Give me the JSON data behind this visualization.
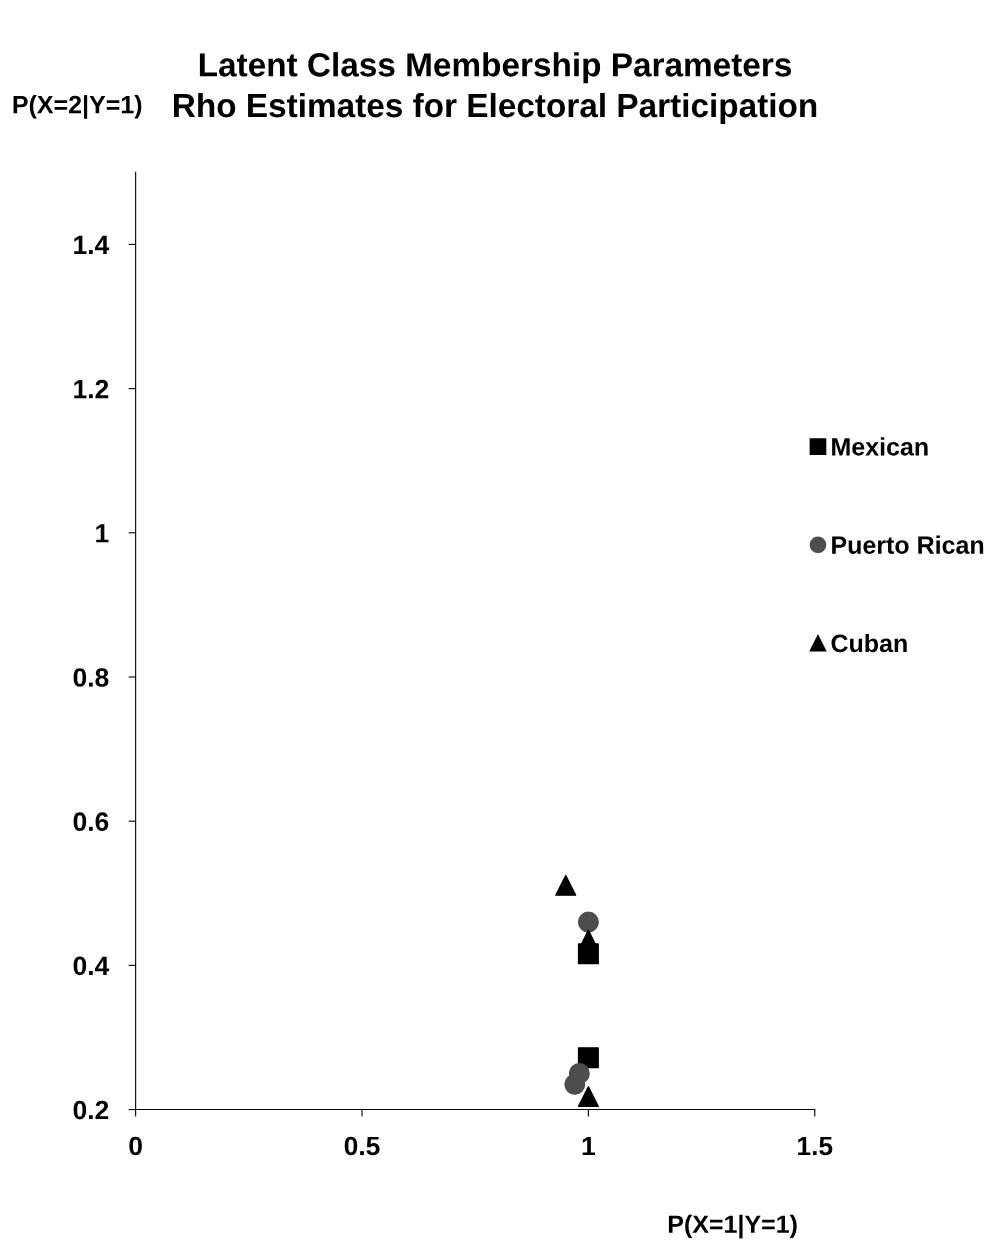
{
  "chart_data": {
    "type": "scatter",
    "title": "Latent Class Membership Parameters\nRho Estimates for Electoral Participation",
    "xlabel": "P(X=1|Y=1)",
    "ylabel": "P(X=2|Y=1)",
    "xlim": [
      0,
      1.5
    ],
    "xticks": [
      0,
      0.5,
      1,
      1.5
    ],
    "ylim": [
      0.2,
      1.5
    ],
    "yticks": [
      0.2,
      0.4,
      0.6,
      0.8,
      1,
      1.2,
      1.4
    ],
    "grid": false,
    "legend": "right",
    "series": [
      {
        "name": "Mexican",
        "color": "#000000",
        "marker": "square",
        "x": [
          1.0,
          1.0
        ],
        "values": [
          0.416,
          0.272
        ]
      },
      {
        "name": "Puerto Rican",
        "color": "#4d4d4d",
        "marker": "circle",
        "x": [
          1.0,
          0.98,
          0.97
        ],
        "values": [
          0.46,
          0.25,
          0.235
        ]
      },
      {
        "name": "Cuban",
        "color": "#000000",
        "marker": "triangle",
        "x": [
          0.95,
          1.0,
          1.0
        ],
        "values": [
          0.511,
          0.435,
          0.218
        ]
      }
    ]
  }
}
